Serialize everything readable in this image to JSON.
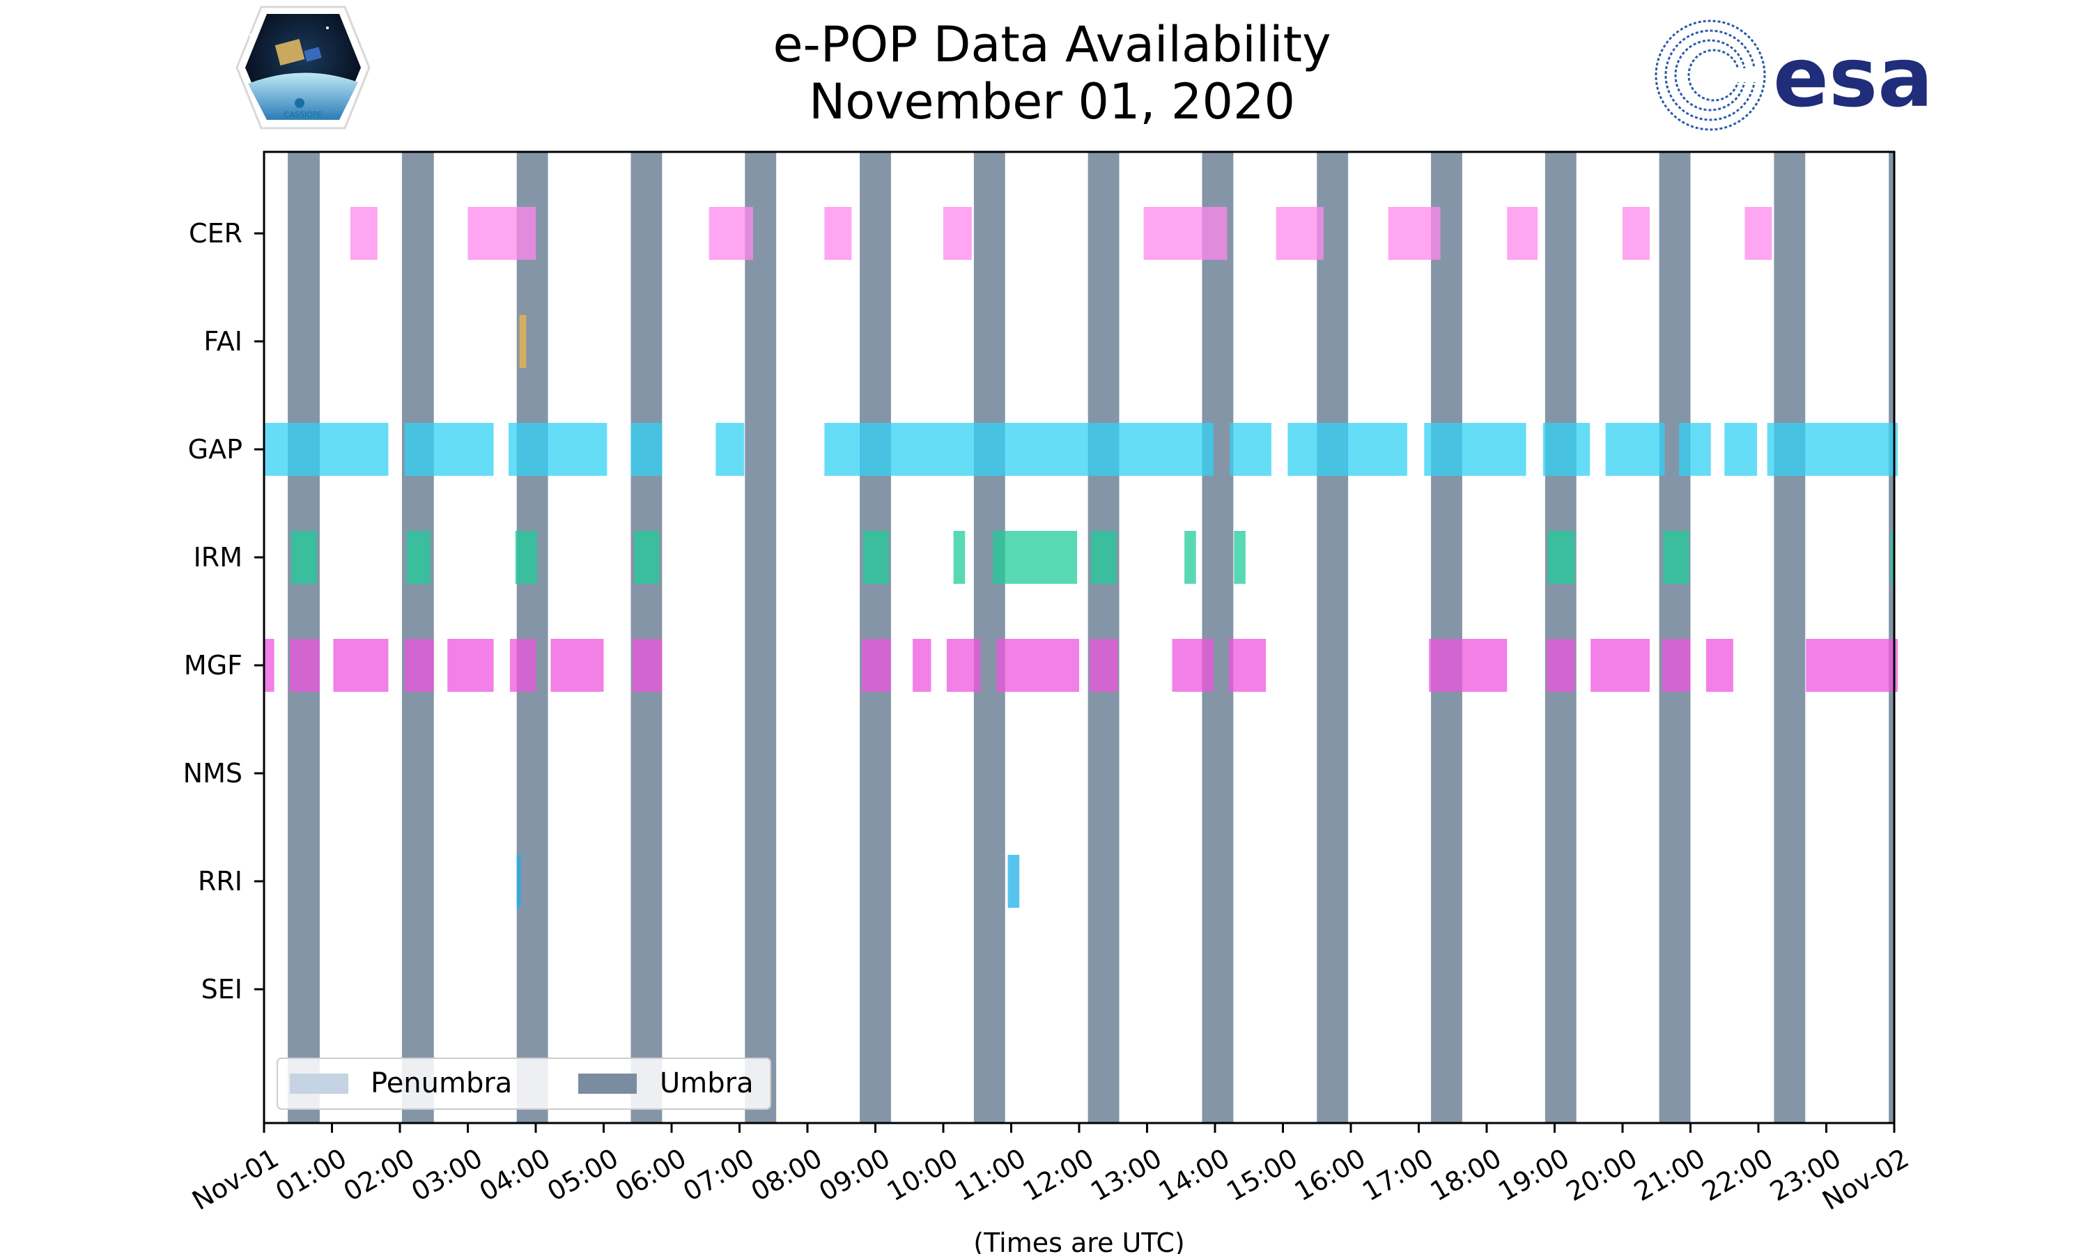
{
  "chart_data": {
    "type": "timeline",
    "title": "e-POP Data Availability",
    "subtitle": "November 01, 2020",
    "xlabel": "(Times are UTC)",
    "xlim": [
      0,
      24
    ],
    "x_ticks": [
      "Nov-01",
      "01:00",
      "02:00",
      "03:00",
      "04:00",
      "05:00",
      "06:00",
      "07:00",
      "08:00",
      "09:00",
      "10:00",
      "11:00",
      "12:00",
      "13:00",
      "14:00",
      "15:00",
      "16:00",
      "17:00",
      "18:00",
      "19:00",
      "20:00",
      "21:00",
      "22:00",
      "23:00",
      "Nov-02"
    ],
    "instruments": [
      "CER",
      "FAI",
      "GAP",
      "IRM",
      "MGF",
      "NMS",
      "RRI",
      "SEI"
    ],
    "umbra": [
      [
        0.35,
        0.82
      ],
      [
        2.03,
        2.5
      ],
      [
        3.72,
        4.18
      ],
      [
        5.4,
        5.86
      ],
      [
        7.08,
        7.54
      ],
      [
        8.77,
        9.23
      ],
      [
        10.45,
        10.91
      ],
      [
        12.13,
        12.59
      ],
      [
        13.81,
        14.27
      ],
      [
        15.5,
        15.96
      ],
      [
        17.18,
        17.64
      ],
      [
        18.86,
        19.32
      ],
      [
        20.54,
        21.0
      ],
      [
        22.23,
        22.69
      ],
      [
        23.92,
        24.0
      ]
    ],
    "penumbra": [],
    "legend": {
      "penumbra": "Penumbra",
      "umbra": "Umbra"
    },
    "series": [
      {
        "name": "CER",
        "color": "#ff88ee",
        "intervals": [
          [
            1.27,
            1.67
          ],
          [
            3.0,
            4.0
          ],
          [
            6.55,
            7.2
          ],
          [
            8.25,
            8.65
          ],
          [
            10.0,
            10.42
          ],
          [
            12.95,
            14.18
          ],
          [
            14.9,
            15.6
          ],
          [
            16.55,
            17.32
          ],
          [
            18.3,
            18.75
          ],
          [
            20.0,
            20.4
          ],
          [
            21.8,
            22.2
          ]
        ]
      },
      {
        "name": "FAI",
        "color": "#f0b74a",
        "intervals": [
          [
            3.76,
            3.86
          ]
        ]
      },
      {
        "name": "GAP",
        "color": "#33d1f4",
        "intervals": [
          [
            0.0,
            1.83
          ],
          [
            2.07,
            3.38
          ],
          [
            3.6,
            5.05
          ],
          [
            5.4,
            5.86
          ],
          [
            6.65,
            7.07
          ],
          [
            8.25,
            13.98
          ],
          [
            14.22,
            14.83
          ],
          [
            15.07,
            16.83
          ],
          [
            17.08,
            18.58
          ],
          [
            18.83,
            19.52
          ],
          [
            19.75,
            20.62
          ],
          [
            20.83,
            21.3
          ],
          [
            21.5,
            21.98
          ],
          [
            22.13,
            24.0
          ],
          [
            24.0,
            24.0
          ]
        ]
      },
      {
        "name": "IRM",
        "color": "#22cc99",
        "intervals": [
          [
            0.4,
            0.78
          ],
          [
            2.1,
            2.45
          ],
          [
            3.7,
            4.02
          ],
          [
            5.45,
            5.82
          ],
          [
            8.82,
            9.2
          ],
          [
            10.15,
            10.32
          ],
          [
            10.73,
            11.97
          ],
          [
            12.17,
            12.55
          ],
          [
            13.55,
            13.72
          ],
          [
            14.28,
            14.45
          ],
          [
            18.9,
            19.3
          ],
          [
            20.6,
            20.98
          ],
          [
            23.95,
            24.0
          ]
        ]
      },
      {
        "name": "MGF",
        "color": "#ee55dd",
        "intervals": [
          [
            0.0,
            0.15
          ],
          [
            0.38,
            0.82
          ],
          [
            1.02,
            1.83
          ],
          [
            2.07,
            2.5
          ],
          [
            2.7,
            3.38
          ],
          [
            3.62,
            4.0
          ],
          [
            4.22,
            5.0
          ],
          [
            5.42,
            5.86
          ],
          [
            8.8,
            9.23
          ],
          [
            9.55,
            9.82
          ],
          [
            10.05,
            10.55
          ],
          [
            10.78,
            12.0
          ],
          [
            12.15,
            12.57
          ],
          [
            13.37,
            13.98
          ],
          [
            14.2,
            14.75
          ],
          [
            17.15,
            18.3
          ],
          [
            18.88,
            19.3
          ],
          [
            19.53,
            20.4
          ],
          [
            20.58,
            21.0
          ],
          [
            21.23,
            21.63
          ],
          [
            22.7,
            24.0
          ],
          [
            24.0,
            24.0
          ]
        ]
      },
      {
        "name": "NMS",
        "color": "#55aaff",
        "intervals": []
      },
      {
        "name": "RRI",
        "color": "#1fb0e8",
        "intervals": [
          [
            3.72,
            3.78
          ],
          [
            10.95,
            11.12
          ]
        ]
      },
      {
        "name": "SEI",
        "color": "#aa77ff",
        "intervals": []
      }
    ]
  },
  "logos": {
    "left": "CASSIOPE",
    "right": "esa"
  }
}
